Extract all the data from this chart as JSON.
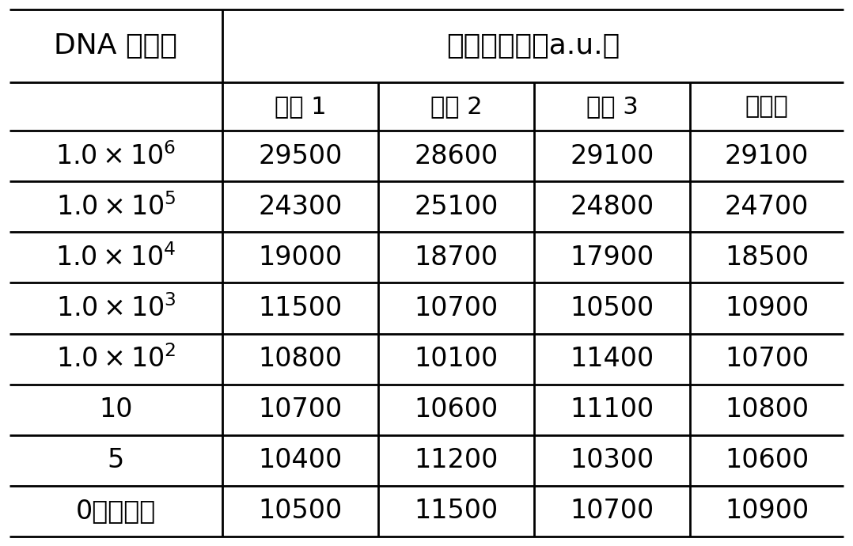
{
  "col0_header": "DNA 拷贝数",
  "col14_header": "光信号强度（a.u.）",
  "subheaders": [
    "实验 1",
    "实验 2",
    "实验 3",
    "平均値"
  ],
  "row_labels": [
    "1.0×10⁶",
    "1.0×10⁵",
    "1.0×10⁴",
    "1.0×10³",
    "1.0×10²",
    "10",
    "5",
    "0（空白）"
  ],
  "row_labels_math": [
    true,
    true,
    true,
    true,
    true,
    false,
    false,
    false
  ],
  "row_exponents": [
    "6",
    "5",
    "4",
    "3",
    "2",
    "",
    "",
    ""
  ],
  "data": [
    [
      "29500",
      "28600",
      "29100",
      "29100"
    ],
    [
      "24300",
      "25100",
      "24800",
      "24700"
    ],
    [
      "19000",
      "18700",
      "17900",
      "18500"
    ],
    [
      "11500",
      "10700",
      "10500",
      "10900"
    ],
    [
      "10800",
      "10100",
      "11400",
      "10700"
    ],
    [
      "10700",
      "10600",
      "11100",
      "10800"
    ],
    [
      "10400",
      "11200",
      "10300",
      "10600"
    ],
    [
      "10500",
      "11500",
      "10700",
      "10900"
    ]
  ],
  "background_color": "#ffffff",
  "line_color": "#000000",
  "text_color": "#000000"
}
